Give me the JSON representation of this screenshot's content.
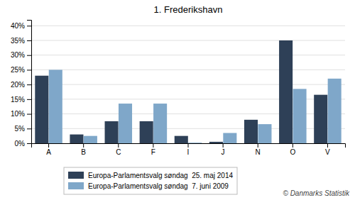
{
  "chart_data": {
    "type": "bar",
    "title": "1. Frederikshavn",
    "categories": [
      "A",
      "B",
      "C",
      "F",
      "I",
      "J",
      "N",
      "O",
      "V"
    ],
    "series": [
      {
        "name": "Europa-Parlamentsvalg søndag  25. maj 2014",
        "color": "#2E4057",
        "values": [
          23,
          3,
          7.5,
          7.5,
          2.5,
          0.5,
          8,
          35,
          16.5
        ]
      },
      {
        "name": "Europa-Parlamentsvalg søndag  7. juni 2009",
        "color": "#7FA7C9",
        "values": [
          25,
          2.5,
          13.5,
          13.5,
          0.2,
          3.5,
          6.5,
          18.5,
          22
        ]
      }
    ],
    "ylim": [
      0,
      42
    ],
    "yticks": [
      {
        "value": 0,
        "label": "0%"
      },
      {
        "value": 5,
        "label": "5%"
      },
      {
        "value": 10,
        "label": "10%"
      },
      {
        "value": 15,
        "label": "15%"
      },
      {
        "value": 20,
        "label": "20%"
      },
      {
        "value": 25,
        "label": "25%"
      },
      {
        "value": 30,
        "label": "30%"
      },
      {
        "value": 35,
        "label": "35%"
      },
      {
        "value": 40,
        "label": "40%"
      }
    ],
    "grid": true,
    "legend": "bottom",
    "annotations": [
      "© Danmarks Statistik"
    ]
  }
}
